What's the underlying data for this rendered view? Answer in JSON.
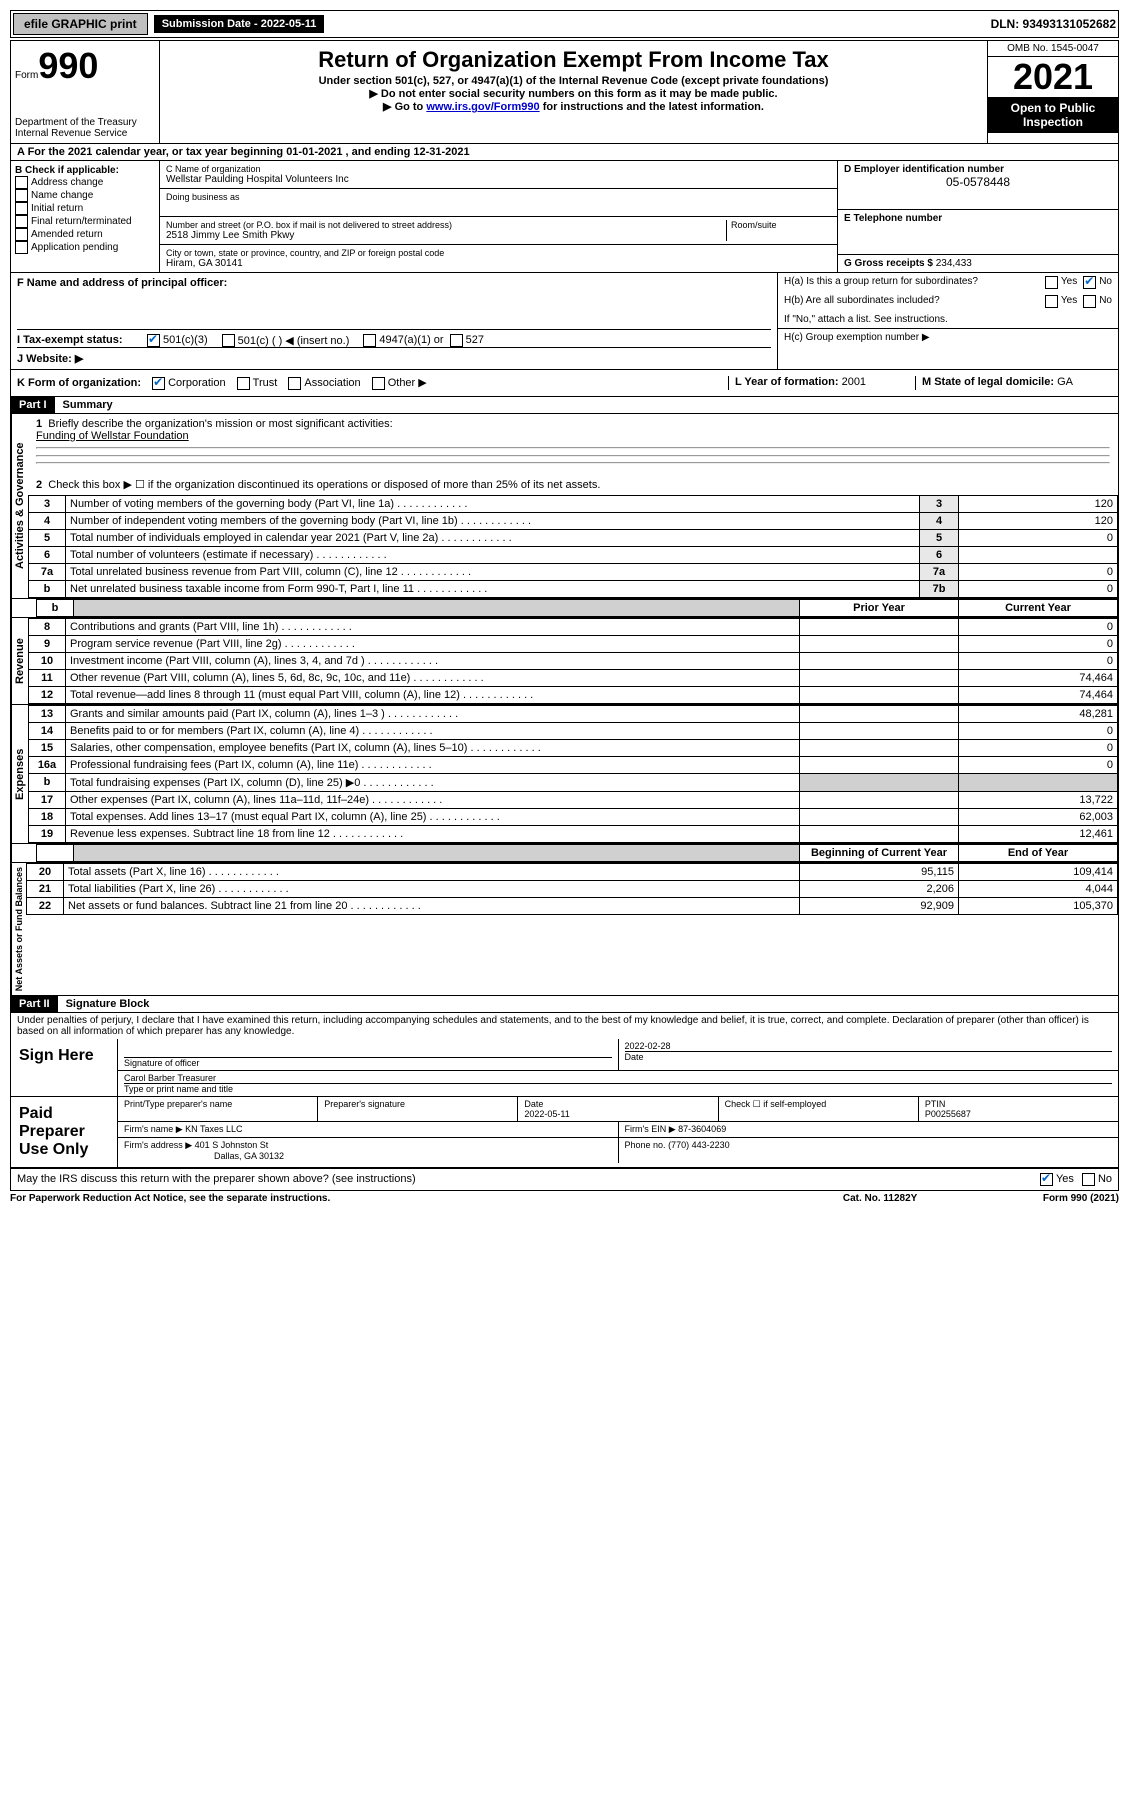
{
  "topbar": {
    "efile": "efile GRAPHIC print",
    "sub_label": "Submission Date - 2022-05-11",
    "dln": "DLN: 93493131052682"
  },
  "header": {
    "form_label": "Form",
    "form_num": "990",
    "title": "Return of Organization Exempt From Income Tax",
    "sub1": "Under section 501(c), 527, or 4947(a)(1) of the Internal Revenue Code (except private foundations)",
    "sub2": "▶ Do not enter social security numbers on this form as it may be made public.",
    "sub3_pre": "▶ Go to ",
    "sub3_link": "www.irs.gov/Form990",
    "sub3_post": " for instructions and the latest information.",
    "dept": "Department of the Treasury",
    "irs": "Internal Revenue Service",
    "omb": "OMB No. 1545-0047",
    "year": "2021",
    "open": "Open to Public Inspection"
  },
  "lineA": "A For the 2021 calendar year, or tax year beginning 01-01-2021    , and ending 12-31-2021",
  "boxB": {
    "title": "B Check if applicable:",
    "opts": [
      "Address change",
      "Name change",
      "Initial return",
      "Final return/terminated",
      "Amended return",
      "Application pending"
    ]
  },
  "boxC": {
    "label": "C Name of organization",
    "name": "Wellstar Paulding Hospital Volunteers Inc",
    "dba_label": "Doing business as",
    "street_label": "Number and street (or P.O. box if mail is not delivered to street address)",
    "street": "2518 Jimmy Lee Smith Pkwy",
    "suite_label": "Room/suite",
    "city_label": "City or town, state or province, country, and ZIP or foreign postal code",
    "city": "Hiram, GA  30141"
  },
  "boxD": {
    "label": "D Employer identification number",
    "value": "05-0578448"
  },
  "boxE": {
    "label": "E Telephone number"
  },
  "boxG": {
    "label": "G Gross receipts $",
    "value": "234,433"
  },
  "boxF": {
    "label": "F  Name and address of principal officer:"
  },
  "boxH": {
    "ha": "H(a)  Is this a group return for subordinates?",
    "hb": "H(b)  Are all subordinates included?",
    "hnote": "If \"No,\" attach a list. See instructions.",
    "hc": "H(c)  Group exemption number ▶"
  },
  "yes": "Yes",
  "no": "No",
  "lineI": {
    "label": "I   Tax-exempt status:",
    "opts": [
      "501(c)(3)",
      "501(c) (  ) ◀ (insert no.)",
      "4947(a)(1) or",
      "527"
    ]
  },
  "lineJ": "J   Website: ▶",
  "lineK": {
    "label": "K Form of organization:",
    "opts": [
      "Corporation",
      "Trust",
      "Association",
      "Other ▶"
    ]
  },
  "lineL": {
    "label": "L Year of formation:",
    "value": "2001"
  },
  "lineM": {
    "label": "M State of legal domicile:",
    "value": "GA"
  },
  "part1": {
    "header": "Part I",
    "title": "Summary"
  },
  "governance": {
    "label": "Activities & Governance",
    "l1_label": "Briefly describe the organization's mission or most significant activities:",
    "l1_value": "Funding of Wellstar Foundation",
    "l2": "Check this box ▶ ☐  if the organization discontinued its operations or disposed of more than 25% of its net assets.",
    "rows": [
      {
        "n": "3",
        "desc": "Number of voting members of the governing body (Part VI, line 1a)",
        "box": "3",
        "val": "120"
      },
      {
        "n": "4",
        "desc": "Number of independent voting members of the governing body (Part VI, line 1b)",
        "box": "4",
        "val": "120"
      },
      {
        "n": "5",
        "desc": "Total number of individuals employed in calendar year 2021 (Part V, line 2a)",
        "box": "5",
        "val": "0"
      },
      {
        "n": "6",
        "desc": "Total number of volunteers (estimate if necessary)",
        "box": "6",
        "val": ""
      },
      {
        "n": "7a",
        "desc": "Total unrelated business revenue from Part VIII, column (C), line 12",
        "box": "7a",
        "val": "0"
      },
      {
        "n": "b",
        "desc": "Net unrelated business taxable income from Form 990-T, Part I, line 11",
        "box": "7b",
        "val": "0"
      }
    ]
  },
  "col_headers": {
    "prior": "Prior Year",
    "current": "Current Year"
  },
  "revenue": {
    "label": "Revenue",
    "rows": [
      {
        "n": "8",
        "desc": "Contributions and grants (Part VIII, line 1h)",
        "prior": "",
        "cur": "0"
      },
      {
        "n": "9",
        "desc": "Program service revenue (Part VIII, line 2g)",
        "prior": "",
        "cur": "0"
      },
      {
        "n": "10",
        "desc": "Investment income (Part VIII, column (A), lines 3, 4, and 7d )",
        "prior": "",
        "cur": "0"
      },
      {
        "n": "11",
        "desc": "Other revenue (Part VIII, column (A), lines 5, 6d, 8c, 9c, 10c, and 11e)",
        "prior": "",
        "cur": "74,464"
      },
      {
        "n": "12",
        "desc": "Total revenue—add lines 8 through 11 (must equal Part VIII, column (A), line 12)",
        "prior": "",
        "cur": "74,464"
      }
    ]
  },
  "expenses": {
    "label": "Expenses",
    "rows": [
      {
        "n": "13",
        "desc": "Grants and similar amounts paid (Part IX, column (A), lines 1–3 )",
        "prior": "",
        "cur": "48,281"
      },
      {
        "n": "14",
        "desc": "Benefits paid to or for members (Part IX, column (A), line 4)",
        "prior": "",
        "cur": "0"
      },
      {
        "n": "15",
        "desc": "Salaries, other compensation, employee benefits (Part IX, column (A), lines 5–10)",
        "prior": "",
        "cur": "0"
      },
      {
        "n": "16a",
        "desc": "Professional fundraising fees (Part IX, column (A), line 11e)",
        "prior": "",
        "cur": "0"
      },
      {
        "n": "b",
        "desc": "Total fundraising expenses (Part IX, column (D), line 25) ▶0",
        "prior": "SHADE",
        "cur": "SHADE"
      },
      {
        "n": "17",
        "desc": "Other expenses (Part IX, column (A), lines 11a–11d, 11f–24e)",
        "prior": "",
        "cur": "13,722"
      },
      {
        "n": "18",
        "desc": "Total expenses. Add lines 13–17 (must equal Part IX, column (A), line 25)",
        "prior": "",
        "cur": "62,003"
      },
      {
        "n": "19",
        "desc": "Revenue less expenses. Subtract line 18 from line 12",
        "prior": "",
        "cur": "12,461"
      }
    ]
  },
  "netassets": {
    "label": "Net Assets or Fund Balances",
    "header_prior": "Beginning of Current Year",
    "header_cur": "End of Year",
    "rows": [
      {
        "n": "20",
        "desc": "Total assets (Part X, line 16)",
        "prior": "95,115",
        "cur": "109,414"
      },
      {
        "n": "21",
        "desc": "Total liabilities (Part X, line 26)",
        "prior": "2,206",
        "cur": "4,044"
      },
      {
        "n": "22",
        "desc": "Net assets or fund balances. Subtract line 21 from line 20",
        "prior": "92,909",
        "cur": "105,370"
      }
    ]
  },
  "part2": {
    "header": "Part II",
    "title": "Signature Block"
  },
  "perjury": "Under penalties of perjury, I declare that I have examined this return, including accompanying schedules and statements, and to the best of my knowledge and belief, it is true, correct, and complete. Declaration of preparer (other than officer) is based on all information of which preparer has any knowledge.",
  "sign_here": {
    "label": "Sign Here",
    "sig_officer": "Signature of officer",
    "date_label": "Date",
    "date": "2022-02-28",
    "name": "Carol Barber  Treasurer",
    "name_label": "Type or print name and title"
  },
  "paid_prep": {
    "label": "Paid Preparer Use Only",
    "col1": "Print/Type preparer's name",
    "col2": "Preparer's signature",
    "col3_label": "Date",
    "col3": "2022-05-11",
    "col4_label": "Check ☐ if self-employed",
    "col5_label": "PTIN",
    "col5": "P00255687",
    "firm_name_label": "Firm's name   ▶",
    "firm_name": "KN Taxes LLC",
    "firm_ein_label": "Firm's EIN ▶",
    "firm_ein": "87-3604069",
    "firm_addr_label": "Firm's address ▶",
    "firm_addr1": "401 S Johnston St",
    "firm_addr2": "Dallas, GA  30132",
    "phone_label": "Phone no.",
    "phone": "(770) 443-2230"
  },
  "discuss": "May the IRS discuss this return with the preparer shown above? (see instructions)",
  "footer": {
    "left": "For Paperwork Reduction Act Notice, see the separate instructions.",
    "mid": "Cat. No. 11282Y",
    "right": "Form 990 (2021)"
  }
}
